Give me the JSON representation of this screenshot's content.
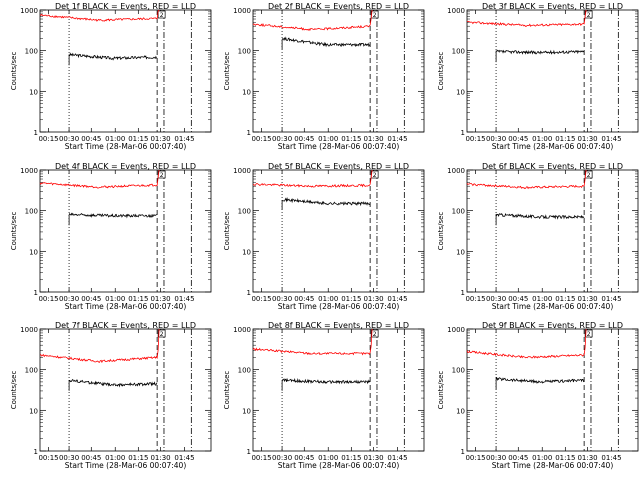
{
  "chart_data": [
    {
      "type": "line",
      "title": "Det 1f BLACK = Events, RED = LLD",
      "xlabel": "Start Time (28-Mar-06 00:07:40)",
      "ylabel": "Counts/sec",
      "yscale": "log",
      "ylim": [
        1,
        1000
      ],
      "x_ticks": [
        "00:15",
        "00:30",
        "00:45",
        "01:00",
        "01:15",
        "01:30",
        "01:45"
      ],
      "y_ticks": [
        "1",
        "10",
        "100",
        "1000"
      ],
      "marker_label": "2",
      "series": [
        {
          "name": "BLACK = Events",
          "color": "#000000",
          "start_level": 80,
          "mid_level": 65,
          "end_level": 70
        },
        {
          "name": "RED = LLD",
          "color": "#ff0000",
          "start_level": 750,
          "mid_level": 560,
          "end_level": 620
        }
      ]
    },
    {
      "type": "line",
      "title": "Det 2f BLACK = Events, RED = LLD",
      "xlabel": "Start Time (28-Mar-06 00:07:40)",
      "ylabel": "Counts/sec",
      "yscale": "log",
      "ylim": [
        1,
        1000
      ],
      "x_ticks": [
        "00:15",
        "00:30",
        "00:45",
        "01:00",
        "01:15",
        "01:30",
        "01:45"
      ],
      "y_ticks": [
        "1",
        "10",
        "100",
        "1000"
      ],
      "marker_label": "2",
      "series": [
        {
          "name": "BLACK = Events",
          "color": "#000000",
          "start_level": 200,
          "mid_level": 140,
          "end_level": 140
        },
        {
          "name": "RED = LLD",
          "color": "#ff0000",
          "start_level": 450,
          "mid_level": 330,
          "end_level": 400
        }
      ]
    },
    {
      "type": "line",
      "title": "Det 3f BLACK = Events, RED = LLD",
      "xlabel": "Start Time (28-Mar-06 00:07:40)",
      "ylabel": "Counts/sec",
      "yscale": "log",
      "ylim": [
        1,
        1000
      ],
      "x_ticks": [
        "00:15",
        "00:30",
        "00:45",
        "01:00",
        "01:15",
        "01:30",
        "01:45"
      ],
      "y_ticks": [
        "1",
        "10",
        "100",
        "1000"
      ],
      "marker_label": "2",
      "series": [
        {
          "name": "BLACK = Events",
          "color": "#000000",
          "start_level": 95,
          "mid_level": 90,
          "end_level": 95
        },
        {
          "name": "RED = LLD",
          "color": "#ff0000",
          "start_level": 500,
          "mid_level": 420,
          "end_level": 450
        }
      ]
    },
    {
      "type": "line",
      "title": "Det 4f BLACK = Events, RED = LLD",
      "xlabel": "Start Time (28-Mar-06 00:07:40)",
      "ylabel": "Counts/sec",
      "yscale": "log",
      "ylim": [
        1,
        1000
      ],
      "x_ticks": [
        "00:15",
        "00:30",
        "00:45",
        "01:00",
        "01:15",
        "01:30",
        "01:45"
      ],
      "y_ticks": [
        "1",
        "10",
        "100",
        "1000"
      ],
      "marker_label": "2",
      "series": [
        {
          "name": "BLACK = Events",
          "color": "#000000",
          "start_level": 80,
          "mid_level": 75,
          "end_level": 75
        },
        {
          "name": "RED = LLD",
          "color": "#ff0000",
          "start_level": 480,
          "mid_level": 380,
          "end_level": 430
        }
      ]
    },
    {
      "type": "line",
      "title": "Det 5f BLACK = Events, RED = LLD",
      "xlabel": "Start Time (28-Mar-06 00:07:40)",
      "ylabel": "Counts/sec",
      "yscale": "log",
      "ylim": [
        1,
        1000
      ],
      "x_ticks": [
        "00:15",
        "00:30",
        "00:45",
        "01:00",
        "01:15",
        "01:30",
        "01:45"
      ],
      "y_ticks": [
        "1",
        "10",
        "100",
        "1000"
      ],
      "marker_label": "2",
      "series": [
        {
          "name": "BLACK = Events",
          "color": "#000000",
          "start_level": 190,
          "mid_level": 150,
          "end_level": 150
        },
        {
          "name": "RED = LLD",
          "color": "#ff0000",
          "start_level": 450,
          "mid_level": 400,
          "end_level": 420
        }
      ]
    },
    {
      "type": "line",
      "title": "Det 6f BLACK = Events, RED = LLD",
      "xlabel": "Start Time (28-Mar-06 00:07:40)",
      "ylabel": "Counts/sec",
      "yscale": "log",
      "ylim": [
        1,
        1000
      ],
      "x_ticks": [
        "00:15",
        "00:30",
        "00:45",
        "01:00",
        "01:15",
        "01:30",
        "01:45"
      ],
      "y_ticks": [
        "1",
        "10",
        "100",
        "1000"
      ],
      "marker_label": "2",
      "series": [
        {
          "name": "BLACK = Events",
          "color": "#000000",
          "start_level": 80,
          "mid_level": 70,
          "end_level": 70
        },
        {
          "name": "RED = LLD",
          "color": "#ff0000",
          "start_level": 450,
          "mid_level": 370,
          "end_level": 400
        }
      ]
    },
    {
      "type": "line",
      "title": "Det 7f BLACK = Events, RED = LLD",
      "xlabel": "Start Time (28-Mar-06 00:07:40)",
      "ylabel": "Counts/sec",
      "yscale": "log",
      "ylim": [
        1,
        1000
      ],
      "x_ticks": [
        "00:15",
        "00:30",
        "00:45",
        "01:00",
        "01:15",
        "01:30",
        "01:45"
      ],
      "y_ticks": [
        "1",
        "10",
        "100",
        "1000"
      ],
      "marker_label": "2",
      "series": [
        {
          "name": "BLACK = Events",
          "color": "#000000",
          "start_level": 55,
          "mid_level": 42,
          "end_level": 45
        },
        {
          "name": "RED = LLD",
          "color": "#ff0000",
          "start_level": 230,
          "mid_level": 160,
          "end_level": 200
        }
      ]
    },
    {
      "type": "line",
      "title": "Det 8f BLACK = Events, RED = LLD",
      "xlabel": "Start Time (28-Mar-06 00:07:40)",
      "ylabel": "Counts/sec",
      "yscale": "log",
      "ylim": [
        1,
        1000
      ],
      "x_ticks": [
        "00:15",
        "00:30",
        "00:45",
        "01:00",
        "01:15",
        "01:30",
        "01:45"
      ],
      "y_ticks": [
        "1",
        "10",
        "100",
        "1000"
      ],
      "marker_label": "2",
      "series": [
        {
          "name": "BLACK = Events",
          "color": "#000000",
          "start_level": 55,
          "mid_level": 50,
          "end_level": 50
        },
        {
          "name": "RED = LLD",
          "color": "#ff0000",
          "start_level": 320,
          "mid_level": 250,
          "end_level": 250
        }
      ]
    },
    {
      "type": "line",
      "title": "Det 9f BLACK = Events, RED = LLD",
      "xlabel": "Start Time (28-Mar-06 00:07:40)",
      "ylabel": "Counts/sec",
      "yscale": "log",
      "ylim": [
        1,
        1000
      ],
      "x_ticks": [
        "00:15",
        "00:30",
        "00:45",
        "01:00",
        "01:15",
        "01:30",
        "01:45"
      ],
      "y_ticks": [
        "1",
        "10",
        "100",
        "1000"
      ],
      "marker_label": "2",
      "series": [
        {
          "name": "BLACK = Events",
          "color": "#000000",
          "start_level": 60,
          "mid_level": 50,
          "end_level": 55
        },
        {
          "name": "RED = LLD",
          "color": "#ff0000",
          "start_level": 280,
          "mid_level": 200,
          "end_level": 230
        }
      ]
    }
  ]
}
